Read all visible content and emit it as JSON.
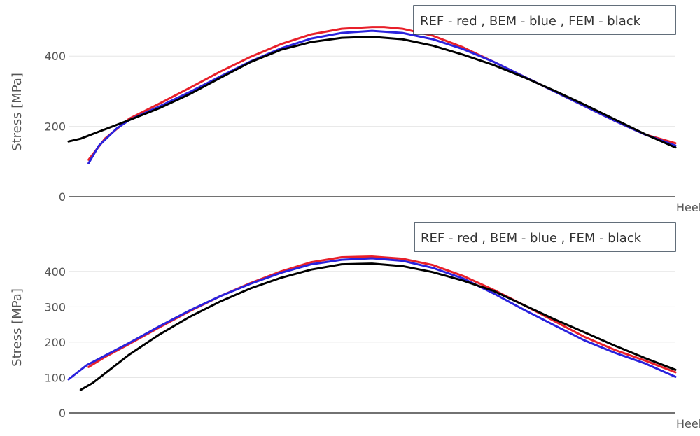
{
  "chart_data": [
    {
      "type": "line",
      "ylabel": "Stress [MPa]",
      "xlabel": "Heel",
      "legend_text": "REF - red ,   BEM - blue ,   FEM - black",
      "legend_position": "top-right",
      "ylim": [
        0,
        510
      ],
      "xlim": [
        0,
        1
      ],
      "yticks": [
        0,
        200,
        400
      ],
      "grid": true,
      "series": [
        {
          "color": "#e8202a",
          "x": [
            0.033,
            0.06,
            0.1,
            0.15,
            0.2,
            0.25,
            0.3,
            0.35,
            0.4,
            0.45,
            0.5,
            0.52,
            0.55,
            0.6,
            0.65,
            0.7,
            0.75,
            0.8,
            0.85,
            0.9,
            0.95,
            1.0
          ],
          "y": [
            105,
            165,
            222,
            265,
            310,
            356,
            398,
            434,
            462,
            478,
            483,
            483,
            478,
            458,
            425,
            384,
            342,
            300,
            258,
            216,
            177,
            152
          ]
        },
        {
          "color": "#2a22dd",
          "x": [
            0.033,
            0.05,
            0.08,
            0.1,
            0.15,
            0.2,
            0.25,
            0.3,
            0.35,
            0.4,
            0.45,
            0.5,
            0.55,
            0.6,
            0.65,
            0.7,
            0.75,
            0.8,
            0.85,
            0.9,
            0.95,
            1.0
          ],
          "y": [
            95,
            145,
            195,
            218,
            257,
            298,
            342,
            385,
            422,
            450,
            466,
            472,
            466,
            448,
            420,
            384,
            342,
            300,
            258,
            216,
            177,
            145
          ]
        },
        {
          "color": "#000000",
          "x": [
            0.0,
            0.02,
            0.05,
            0.1,
            0.15,
            0.2,
            0.25,
            0.3,
            0.35,
            0.4,
            0.45,
            0.5,
            0.55,
            0.6,
            0.65,
            0.7,
            0.75,
            0.8,
            0.85,
            0.9,
            0.95,
            1.0
          ],
          "y": [
            157,
            165,
            185,
            218,
            252,
            292,
            338,
            383,
            418,
            440,
            452,
            455,
            448,
            430,
            404,
            375,
            340,
            302,
            262,
            220,
            178,
            140
          ]
        }
      ]
    },
    {
      "type": "line",
      "ylabel": "Stress [MPa]",
      "xlabel": "Heel",
      "legend_text": "REF - red ,   BEM - blue ,   FEM - black",
      "legend_position": "top-right",
      "ylim": [
        0,
        445
      ],
      "xlim": [
        0,
        1
      ],
      "yticks": [
        0,
        100,
        200,
        300,
        400
      ],
      "grid": true,
      "series": [
        {
          "color": "#e8202a",
          "x": [
            0.033,
            0.06,
            0.1,
            0.15,
            0.2,
            0.25,
            0.3,
            0.35,
            0.4,
            0.45,
            0.5,
            0.55,
            0.6,
            0.65,
            0.7,
            0.75,
            0.8,
            0.85,
            0.9,
            0.95,
            1.0
          ],
          "y": [
            130,
            158,
            195,
            242,
            288,
            330,
            367,
            400,
            426,
            440,
            442,
            436,
            418,
            387,
            348,
            305,
            260,
            215,
            178,
            148,
            115
          ]
        },
        {
          "color": "#2a22dd",
          "x": [
            0.0,
            0.03,
            0.06,
            0.1,
            0.15,
            0.2,
            0.25,
            0.3,
            0.35,
            0.4,
            0.45,
            0.5,
            0.55,
            0.6,
            0.65,
            0.7,
            0.75,
            0.8,
            0.85,
            0.9,
            0.95,
            1.0
          ],
          "y": [
            95,
            135,
            162,
            198,
            245,
            290,
            330,
            365,
            396,
            420,
            433,
            437,
            430,
            410,
            380,
            338,
            292,
            248,
            205,
            170,
            140,
            102
          ]
        },
        {
          "color": "#000000",
          "x": [
            0.02,
            0.04,
            0.07,
            0.1,
            0.15,
            0.2,
            0.25,
            0.3,
            0.35,
            0.4,
            0.45,
            0.5,
            0.55,
            0.6,
            0.65,
            0.7,
            0.75,
            0.8,
            0.85,
            0.9,
            0.95,
            1.0
          ],
          "y": [
            65,
            85,
            125,
            165,
            222,
            272,
            315,
            352,
            382,
            405,
            420,
            422,
            415,
            398,
            374,
            345,
            305,
            265,
            228,
            190,
            155,
            122
          ]
        }
      ]
    }
  ]
}
